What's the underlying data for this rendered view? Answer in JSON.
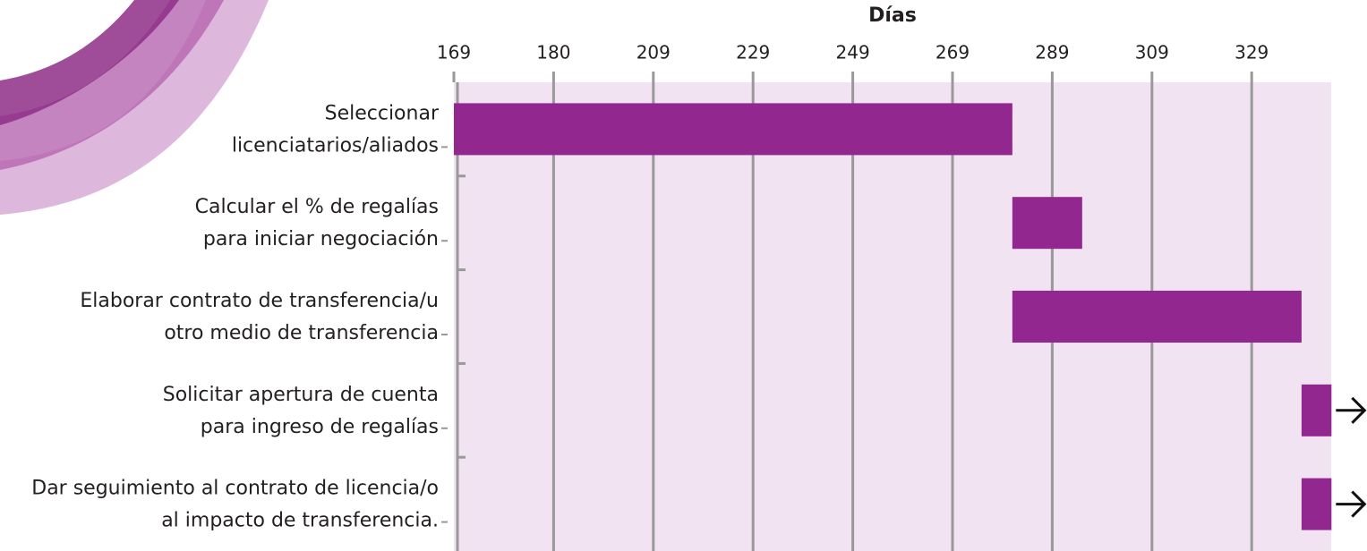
{
  "chart_data": {
    "type": "gantt",
    "x_label": "Días",
    "categories": [
      [
        "Seleccionar",
        "licenciatarios/aliados"
      ],
      [
        "Calcular el % de regalías",
        "para iniciar negociación"
      ],
      [
        "Elaborar contrato de transferencia/u",
        "otro medio de transferencia"
      ],
      [
        "Solicitar apertura de cuenta",
        "para ingreso de regalías"
      ],
      [
        "Dar seguimiento al contrato de licencia/o",
        "al impacto de transferencia."
      ]
    ],
    "start": [
      169,
      281,
      281,
      339,
      339
    ],
    "end": [
      281,
      295,
      339,
      345,
      345
    ],
    "color": "#92278f",
    "xlim": [
      169,
      345
    ],
    "xticks": [
      169,
      180,
      209,
      229,
      249,
      269,
      289,
      309,
      329
    ],
    "grid": true
  }
}
